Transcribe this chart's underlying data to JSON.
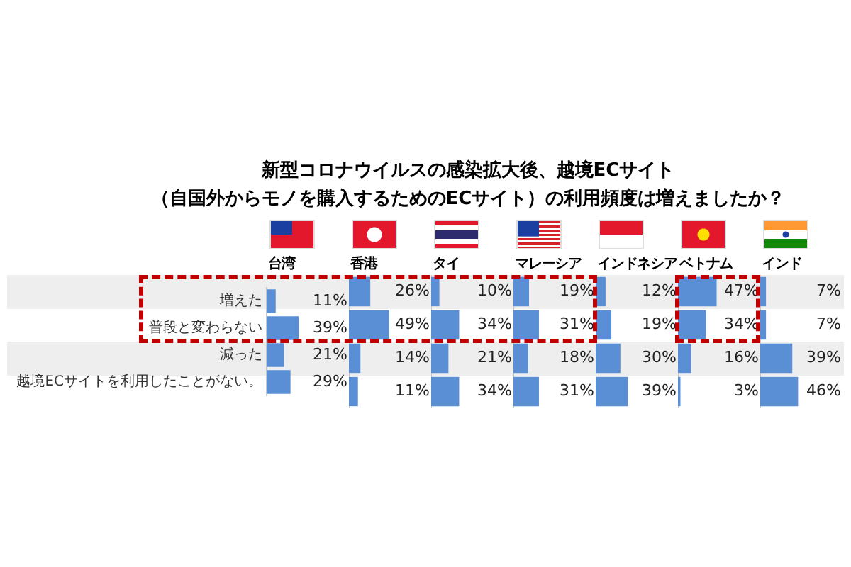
{
  "chart_data": [
    {
      "type": "other",
      "title": "新型コロナウイルスの感染拡大後、越境ECサイト",
      "subtitle": "（自国外からモノを購入するためのECサイト）の利用頻度は増えましたか？"
    },
    {
      "type": "bar",
      "orientation": "horizontal",
      "title": "台湾",
      "categories": [
        "増えた",
        "普段と変わらない",
        "減った",
        "越境ECサイトを利用したことがない。"
      ],
      "values": [
        11,
        39,
        21,
        29
      ],
      "value_labels": [
        "11%",
        "39%",
        "21%",
        "29%"
      ],
      "color": "#5b8fd5",
      "tick_labels": "y",
      "bands": [
        {
          "axis": "y",
          "from": "増えた",
          "to": "増えた",
          "color": "#eeeeee"
        },
        {
          "axis": "y",
          "from": "減った",
          "to": "減った",
          "color": "#eeeeee"
        }
      ]
    },
    {
      "type": "bar",
      "orientation": "horizontal",
      "title": "香港",
      "values": [
        26,
        49,
        14,
        11
      ],
      "value_labels": [
        "26%",
        "49%",
        "14%",
        "11%"
      ],
      "color": "#5b8fd5",
      "tick_labels": false
    },
    {
      "type": "bar",
      "orientation": "horizontal",
      "title": "タイ",
      "values": [
        10,
        34,
        21,
        34
      ],
      "value_labels": [
        "10%",
        "34%",
        "21%",
        "34%"
      ],
      "color": "#5b8fd5",
      "tick_labels": false
    },
    {
      "type": "bar",
      "orientation": "horizontal",
      "title": "マレーシア",
      "values": [
        19,
        31,
        18,
        31
      ],
      "value_labels": [
        "19%",
        "31%",
        "18%",
        "31%"
      ],
      "color": "#5b8fd5",
      "tick_labels": false
    },
    {
      "type": "bar",
      "orientation": "horizontal",
      "title": "インドネシア",
      "values": [
        12,
        19,
        30,
        39
      ],
      "value_labels": [
        "12%",
        "19%",
        "30%",
        "39%"
      ],
      "color": "#5b8fd5",
      "tick_labels": false
    },
    {
      "type": "bar",
      "orientation": "horizontal",
      "title": "ベトナム",
      "values": [
        47,
        34,
        16,
        3
      ],
      "value_labels": [
        "47%",
        "34%",
        "16%",
        "3%"
      ],
      "color": "#5b8fd5",
      "tick_labels": false
    },
    {
      "type": "bar",
      "orientation": "horizontal",
      "title": "インド",
      "values": [
        7,
        7,
        39,
        46
      ],
      "value_labels": [
        "7%",
        "7%",
        "39%",
        "46%"
      ],
      "color": "#5b8fd5",
      "tick_labels": false
    }
  ]
}
